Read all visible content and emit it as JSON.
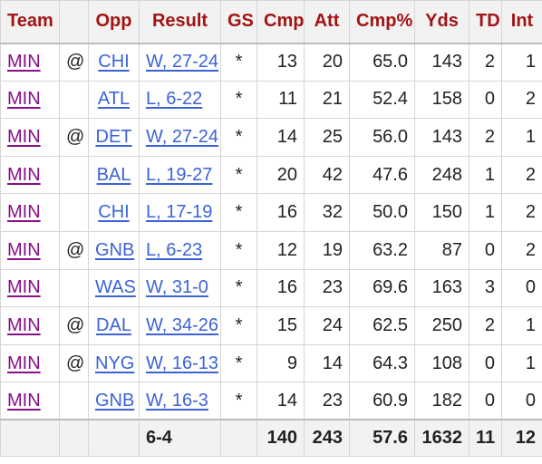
{
  "headers": {
    "team": "Team",
    "opp": "Opp",
    "result": "Result",
    "gs": "GS",
    "cmp": "Cmp",
    "att": "Att",
    "cmp_pct": "Cmp%",
    "yds": "Yds",
    "td": "TD",
    "int": "Int"
  },
  "games": [
    {
      "team": "MIN",
      "loc": "@",
      "opp": "CHI",
      "result": "W, 27-24",
      "gs": "*",
      "cmp": "13",
      "att": "20",
      "cmp_pct": "65.0",
      "yds": "143",
      "td": "2",
      "int": "1"
    },
    {
      "team": "MIN",
      "loc": "",
      "opp": "ATL",
      "result": "L, 6-22",
      "gs": "*",
      "cmp": "11",
      "att": "21",
      "cmp_pct": "52.4",
      "yds": "158",
      "td": "0",
      "int": "2"
    },
    {
      "team": "MIN",
      "loc": "@",
      "opp": "DET",
      "result": "W, 27-24",
      "gs": "*",
      "cmp": "14",
      "att": "25",
      "cmp_pct": "56.0",
      "yds": "143",
      "td": "2",
      "int": "1"
    },
    {
      "team": "MIN",
      "loc": "",
      "opp": "BAL",
      "result": "L, 19-27",
      "gs": "*",
      "cmp": "20",
      "att": "42",
      "cmp_pct": "47.6",
      "yds": "248",
      "td": "1",
      "int": "2"
    },
    {
      "team": "MIN",
      "loc": "",
      "opp": "CHI",
      "result": "L, 17-19",
      "gs": "*",
      "cmp": "16",
      "att": "32",
      "cmp_pct": "50.0",
      "yds": "150",
      "td": "1",
      "int": "2"
    },
    {
      "team": "MIN",
      "loc": "@",
      "opp": "GNB",
      "result": "L, 6-23",
      "gs": "*",
      "cmp": "12",
      "att": "19",
      "cmp_pct": "63.2",
      "yds": "87",
      "td": "0",
      "int": "2"
    },
    {
      "team": "MIN",
      "loc": "",
      "opp": "WAS",
      "result": "W, 31-0",
      "gs": "*",
      "cmp": "16",
      "att": "23",
      "cmp_pct": "69.6",
      "yds": "163",
      "td": "3",
      "int": "0"
    },
    {
      "team": "MIN",
      "loc": "@",
      "opp": "DAL",
      "result": "W, 34-26",
      "gs": "*",
      "cmp": "15",
      "att": "24",
      "cmp_pct": "62.5",
      "yds": "250",
      "td": "2",
      "int": "1"
    },
    {
      "team": "MIN",
      "loc": "@",
      "opp": "NYG",
      "result": "W, 16-13",
      "gs": "*",
      "cmp": "9",
      "att": "14",
      "cmp_pct": "64.3",
      "yds": "108",
      "td": "0",
      "int": "1"
    },
    {
      "team": "MIN",
      "loc": "",
      "opp": "GNB",
      "result": "W, 16-3",
      "gs": "*",
      "cmp": "14",
      "att": "23",
      "cmp_pct": "60.9",
      "yds": "182",
      "td": "0",
      "int": "0"
    }
  ],
  "totals": {
    "record": "6-4",
    "cmp": "140",
    "att": "243",
    "cmp_pct": "57.6",
    "yds": "1632",
    "td": "11",
    "int": "12"
  },
  "colors": {
    "header_text": "#a31313",
    "link": "#3c63d6",
    "team_link_visited": "#8a0e8a",
    "header_bg": "#f2f2f2"
  }
}
